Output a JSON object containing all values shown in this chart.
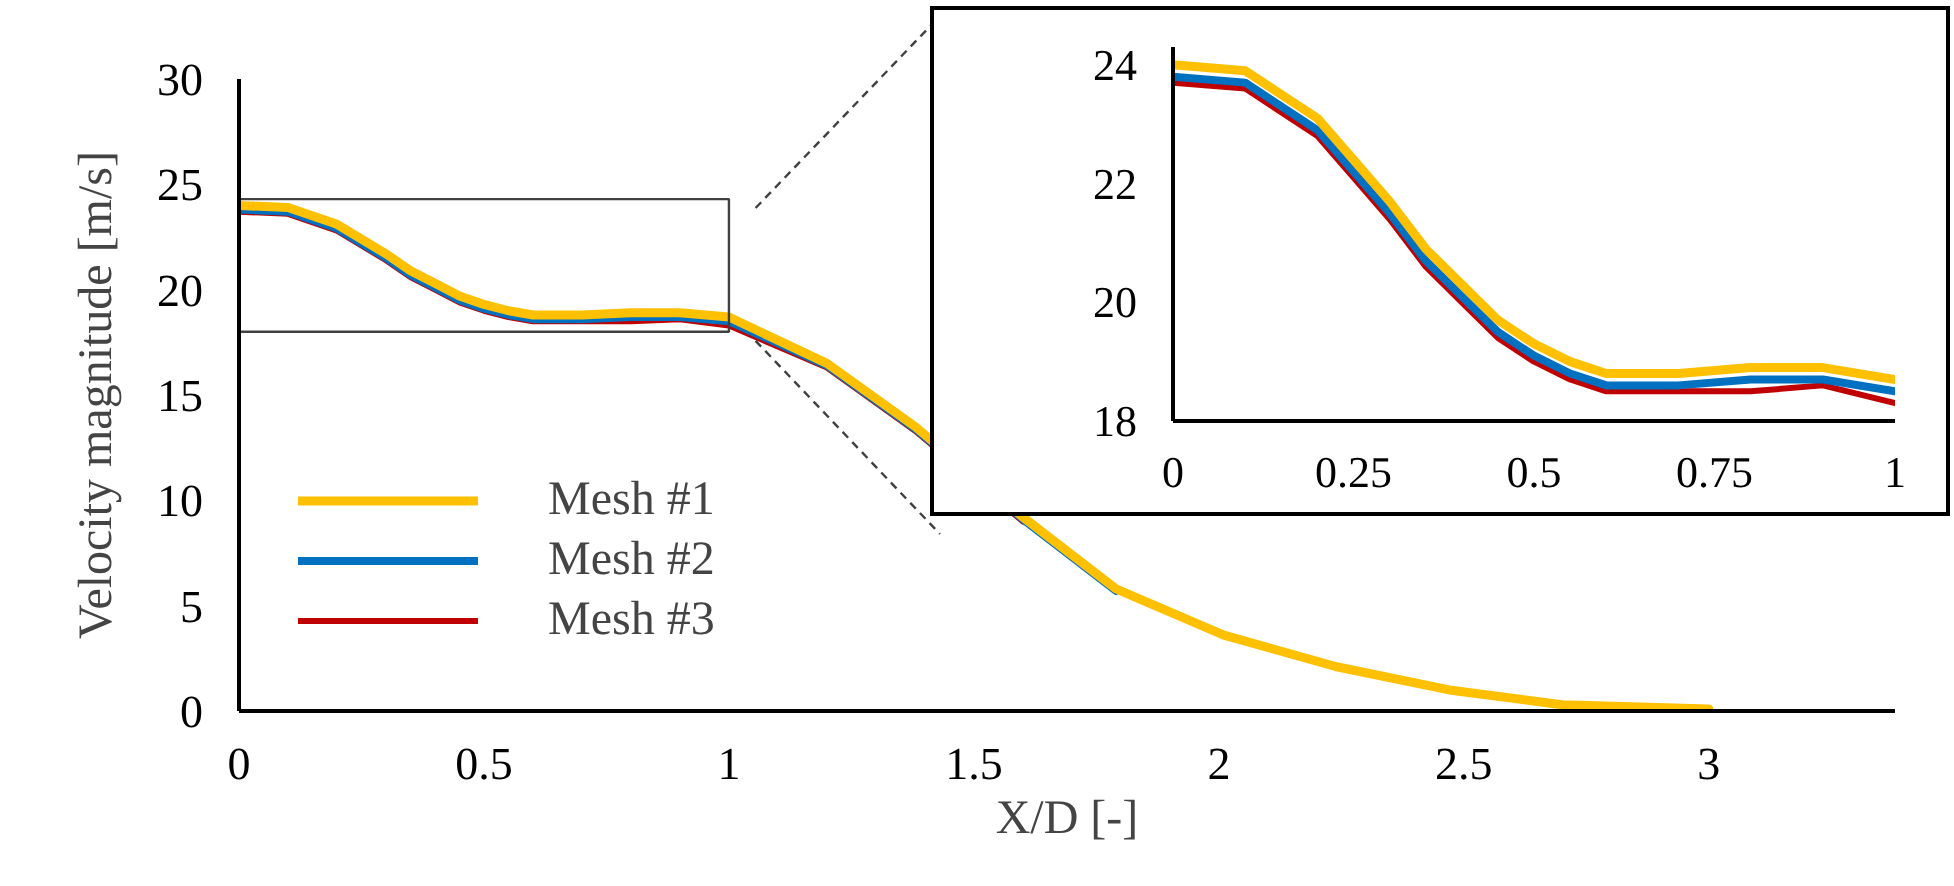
{
  "chart_data": [
    {
      "type": "line",
      "xlabel": "X/D [-]",
      "ylabel": "Velocity magnitude [m/s]",
      "xlim": [
        0,
        3.38
      ],
      "ylim": [
        0,
        30
      ],
      "xticks": [
        0,
        0.5,
        1,
        1.5,
        2,
        2.5,
        3
      ],
      "yticks": [
        0,
        5,
        10,
        15,
        20,
        25,
        30
      ],
      "grid": false,
      "legend": "bottom left",
      "x": [
        0,
        0.1,
        0.2,
        0.25,
        0.3,
        0.35,
        0.4,
        0.45,
        0.5,
        0.55,
        0.6,
        0.7,
        0.8,
        0.9,
        1.0,
        1.2,
        1.38,
        1.6,
        1.79,
        2.01,
        2.24,
        2.47,
        2.7,
        3.0
      ],
      "series": [
        {
          "name": "Mesh #1",
          "color": "#ffc000",
          "values": [
            24.0,
            23.9,
            23.1,
            22.4,
            21.7,
            20.9,
            20.3,
            19.7,
            19.3,
            19.0,
            18.8,
            18.8,
            18.9,
            18.9,
            18.7,
            16.5,
            13.5,
            9.2,
            5.8,
            3.6,
            2.1,
            1.0,
            0.3,
            0.1
          ]
        },
        {
          "name": "Mesh #2",
          "color": "#0070c0",
          "values": [
            23.8,
            23.7,
            22.9,
            22.2,
            21.5,
            20.7,
            20.1,
            19.5,
            19.1,
            18.8,
            18.6,
            18.6,
            18.7,
            18.7,
            18.5,
            16.4,
            13.4,
            9.1,
            5.7,
            null,
            null,
            null,
            null,
            null
          ]
        },
        {
          "name": "Mesh #3",
          "color": "#c00000",
          "values": [
            23.7,
            23.6,
            22.8,
            22.1,
            21.4,
            20.6,
            20.0,
            19.4,
            19.0,
            18.7,
            18.5,
            18.5,
            18.5,
            18.6,
            18.3,
            16.3,
            13.3,
            9.0,
            null,
            null,
            null,
            null,
            null,
            null
          ]
        }
      ]
    },
    {
      "type": "line",
      "xlim": [
        0,
        1
      ],
      "ylim": [
        18,
        24.3
      ],
      "xticks": [
        0,
        0.25,
        0.5,
        0.75,
        1
      ],
      "yticks": [
        18,
        20,
        22,
        24
      ],
      "grid": false,
      "x": [
        0,
        0.1,
        0.2,
        0.25,
        0.3,
        0.35,
        0.4,
        0.45,
        0.5,
        0.55,
        0.6,
        0.7,
        0.8,
        0.9,
        1.0
      ],
      "series": [
        {
          "color": "#ffc000",
          "values": [
            24.0,
            23.9,
            23.1,
            22.4,
            21.7,
            20.9,
            20.3,
            19.7,
            19.3,
            19.0,
            18.8,
            18.8,
            18.9,
            18.9,
            18.7
          ]
        },
        {
          "color": "#0070c0",
          "values": [
            23.8,
            23.7,
            22.9,
            22.2,
            21.5,
            20.7,
            20.1,
            19.5,
            19.1,
            18.8,
            18.6,
            18.6,
            18.7,
            18.7,
            18.5
          ]
        },
        {
          "color": "#c00000",
          "values": [
            23.7,
            23.6,
            22.8,
            22.1,
            21.4,
            20.6,
            20.0,
            19.4,
            19.0,
            18.7,
            18.5,
            18.5,
            18.5,
            18.6,
            18.3
          ]
        }
      ]
    }
  ]
}
